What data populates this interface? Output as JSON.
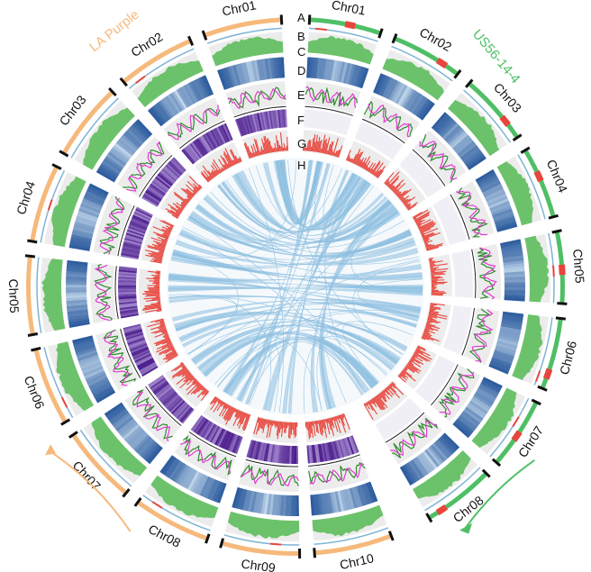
{
  "genomes": {
    "left": {
      "name": "LA Purple",
      "color": "#f6b97c",
      "chromosomes": [
        "Chr01",
        "Chr02",
        "Chr03",
        "Chr04",
        "Chr05",
        "Chr06",
        "Chr07",
        "Chr08",
        "Chr09",
        "Chr10"
      ]
    },
    "right": {
      "name": "US56-14-4",
      "color": "#4fbf66",
      "chromosomes": [
        "Chr01",
        "Chr02",
        "Chr03",
        "Chr04",
        "Chr05",
        "Chr06",
        "Chr07",
        "Chr08"
      ]
    }
  },
  "track_letters": [
    "A",
    "B",
    "C",
    "D",
    "E",
    "F",
    "G",
    "H"
  ],
  "colors": {
    "telomere": "#111111",
    "line_b": "#7fb4d6",
    "line_b_marks": "#e8453c",
    "right_marks": "#e8453c",
    "gene_density": "#6cc26a",
    "heatmap_dark": "#0a3f8c",
    "heatmap_light": "#d6e8f6",
    "line_green": "#2e8b2e",
    "line_magenta": "#e23bd0",
    "purple_dark": "#4b1c8c",
    "purple_light": "#b39ddb",
    "red_bars": "#e8453c",
    "track_bg": "#ececec",
    "synteny": "#8dbfe0"
  }
}
